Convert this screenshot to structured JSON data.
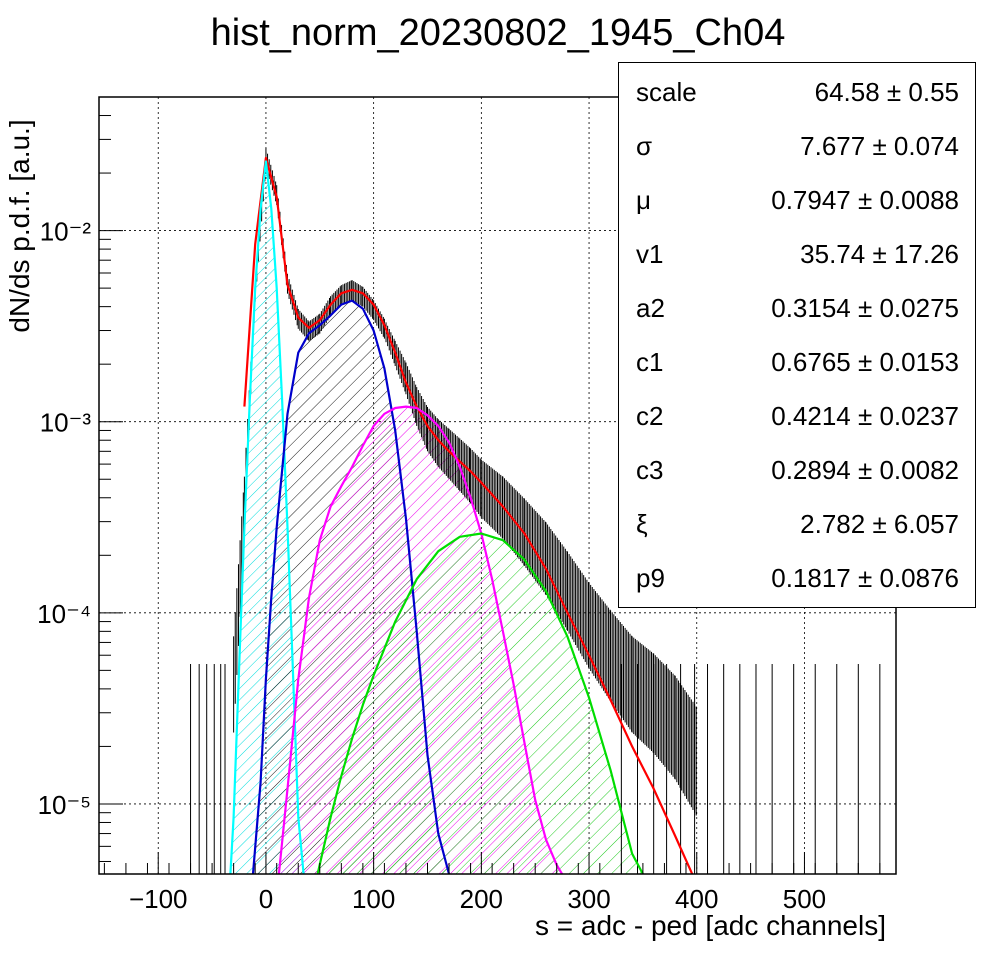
{
  "title": "hist_norm_20230802_1945_Ch04",
  "chart_data": {
    "type": "histogram-with-fit",
    "title": "hist_norm_20230802_1945_Ch04",
    "xlabel": "s = adc - ped [adc channels]",
    "ylabel": "dN/ds p.d.f. [a.u.]",
    "xlim": [
      -155,
      585
    ],
    "ylim": [
      4.3e-06,
      0.05
    ],
    "yscale": "log",
    "grid": true,
    "x_ticks": [
      "−100",
      "0",
      "100",
      "200",
      "300",
      "400",
      "500"
    ],
    "y_ticks": [
      "10⁻⁵",
      "10⁻⁴",
      "10⁻³",
      "10⁻²"
    ],
    "data_histogram": {
      "x": [
        -30,
        -20,
        -10,
        0,
        10,
        20,
        30,
        40,
        50,
        60,
        70,
        80,
        90,
        100,
        110,
        120,
        130,
        140,
        150,
        160,
        170,
        180,
        190,
        200,
        220,
        240,
        260,
        280,
        300,
        320,
        340,
        360,
        380,
        400
      ],
      "y": [
        5e-05,
        0.0004,
        0.005,
        0.025,
        0.016,
        0.0055,
        0.0036,
        0.0031,
        0.0034,
        0.0042,
        0.0048,
        0.0051,
        0.0047,
        0.004,
        0.0032,
        0.0024,
        0.0018,
        0.0013,
        0.001,
        0.00085,
        0.00075,
        0.00066,
        0.00058,
        0.0005,
        0.0004,
        0.0003,
        0.00022,
        0.00015,
        0.0001,
        7e-05,
        5e-05,
        4e-05,
        3e-05,
        2e-05
      ]
    },
    "series": [
      {
        "color": "#ff0000",
        "x": [
          -20,
          -10,
          0,
          10,
          20,
          30,
          40,
          50,
          60,
          70,
          80,
          90,
          100,
          110,
          120,
          130,
          140,
          150,
          160,
          170,
          180,
          190,
          200,
          220,
          240,
          260,
          280,
          300,
          320,
          340,
          360,
          380,
          400
        ],
        "y": [
          0.0012,
          0.0085,
          0.024,
          0.015,
          0.0052,
          0.0035,
          0.0031,
          0.0034,
          0.0041,
          0.0047,
          0.0049,
          0.0047,
          0.0041,
          0.0032,
          0.0023,
          0.0016,
          0.0012,
          0.00095,
          0.0008,
          0.0007,
          0.00062,
          0.00055,
          0.00048,
          0.00036,
          0.00026,
          0.00017,
          0.0001,
          6e-05,
          3.5e-05,
          2e-05,
          1.2e-05,
          6.8e-06,
          3.8e-06
        ]
      },
      {
        "color": "#00ffff",
        "x": [
          -33,
          -30,
          -25,
          -20,
          -15,
          -10,
          -5,
          0,
          5,
          10,
          15,
          20,
          25,
          30,
          35
        ],
        "y": [
          4.3e-06,
          8.5e-06,
          5e-05,
          0.00028,
          0.0013,
          0.005,
          0.013,
          0.023,
          0.013,
          0.005,
          0.0013,
          0.00028,
          5e-05,
          8.5e-06,
          4.3e-06
        ]
      },
      {
        "color": "#0000cc",
        "x": [
          -12,
          -5,
          0,
          5,
          10,
          20,
          30,
          40,
          50,
          60,
          70,
          80,
          90,
          100,
          110,
          120,
          130,
          140,
          150,
          160,
          170
        ],
        "y": [
          4.3e-06,
          1.3e-05,
          4.5e-05,
          0.00012,
          0.00028,
          0.0011,
          0.0023,
          0.0029,
          0.0032,
          0.0036,
          0.0041,
          0.0043,
          0.0039,
          0.003,
          0.0019,
          0.0009,
          0.00031,
          8e-05,
          1.8e-05,
          7e-06,
          4.3e-06
        ]
      },
      {
        "color": "#ff00ff",
        "x": [
          12,
          20,
          30,
          40,
          50,
          60,
          70,
          80,
          90,
          100,
          110,
          120,
          130,
          140,
          150,
          160,
          170,
          180,
          190,
          200,
          210,
          220,
          230,
          240,
          250,
          260,
          270,
          275
        ],
        "y": [
          4.3e-06,
          1.2e-05,
          4.5e-05,
          0.00012,
          0.00024,
          0.00036,
          0.00046,
          0.00058,
          0.00075,
          0.00095,
          0.0011,
          0.00118,
          0.0012,
          0.00118,
          0.00108,
          0.00095,
          0.00078,
          0.00058,
          0.0004,
          0.00026,
          0.00015,
          8e-05,
          4.2e-05,
          2.1e-05,
          1.05e-05,
          6.5e-06,
          4.8e-06,
          4.3e-06
        ]
      },
      {
        "color": "#00dd00",
        "x": [
          48,
          60,
          70,
          80,
          90,
          100,
          120,
          140,
          160,
          180,
          200,
          220,
          240,
          260,
          280,
          300,
          320,
          340,
          350
        ],
        "y": [
          4.3e-06,
          8.5e-06,
          1.4e-05,
          2.2e-05,
          3.3e-05,
          4.7e-05,
          9e-05,
          0.00015,
          0.00021,
          0.00025,
          0.00026,
          0.00024,
          0.00019,
          0.00013,
          7.5e-05,
          3.6e-05,
          1.5e-05,
          5.5e-06,
          4.3e-06
        ]
      }
    ]
  },
  "stats": [
    {
      "name": "scale",
      "value": "64.58 ± 0.55"
    },
    {
      "name": "σ",
      "value": "7.677 ± 0.074"
    },
    {
      "name": "μ",
      "value": "0.7947 ± 0.0088"
    },
    {
      "name": "v1",
      "value": "35.74 ± 17.26"
    },
    {
      "name": "a2",
      "value": "0.3154 ± 0.0275"
    },
    {
      "name": "c1",
      "value": "0.6765 ± 0.0153"
    },
    {
      "name": "c2",
      "value": "0.4214 ± 0.0237"
    },
    {
      "name": "c3",
      "value": "0.2894 ± 0.0082"
    },
    {
      "name": "ξ",
      "value": "2.782 ± 6.057"
    },
    {
      "name": "p9",
      "value": "0.1817 ± 0.0876"
    }
  ]
}
